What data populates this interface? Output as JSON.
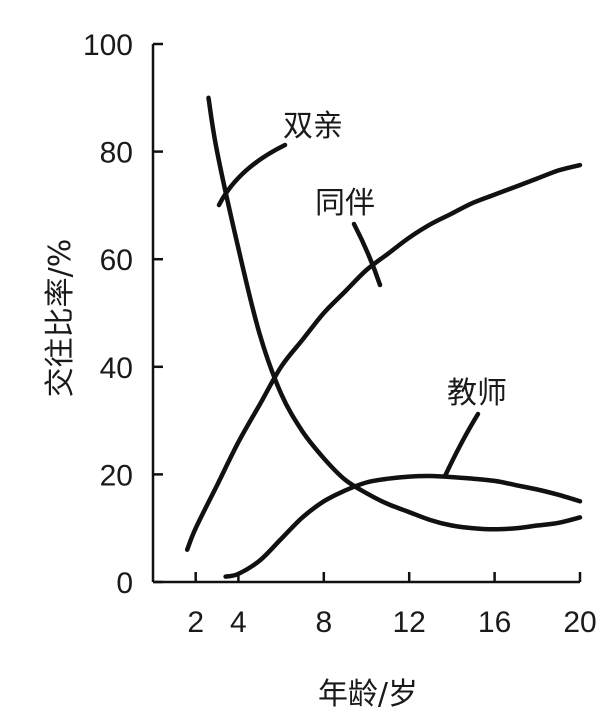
{
  "chart_data": {
    "type": "line",
    "title": "",
    "xlabel": "年龄/岁",
    "ylabel": "交往比率/%",
    "xlim": [
      0,
      20
    ],
    "ylim": [
      0,
      100
    ],
    "xticks": [
      2,
      4,
      8,
      12,
      16,
      20
    ],
    "yticks": [
      0,
      20,
      40,
      60,
      80,
      100
    ],
    "grid": false,
    "series": [
      {
        "name": "双亲",
        "x": [
          2.6,
          3,
          4,
          5,
          6,
          7,
          8,
          9,
          10,
          11,
          12,
          13,
          14,
          15,
          16,
          17,
          18,
          19,
          20
        ],
        "y": [
          90,
          80,
          62,
          46,
          35,
          28,
          23,
          19,
          16.5,
          14.5,
          13,
          11.5,
          10.5,
          10,
          9.8,
          10,
          10.5,
          11,
          12
        ]
      },
      {
        "name": "同伴",
        "x": [
          1.6,
          2,
          3,
          4,
          5,
          6,
          7,
          8,
          9,
          10,
          11,
          12,
          13,
          14,
          15,
          16,
          17,
          18,
          19,
          20
        ],
        "y": [
          6,
          10,
          18,
          26,
          33,
          40,
          45,
          50,
          54,
          58,
          61,
          64,
          66.5,
          68.5,
          70.5,
          72,
          73.5,
          75,
          76.5,
          77.5
        ]
      },
      {
        "name": "教师",
        "x": [
          3.4,
          4,
          5,
          6,
          7,
          8,
          9,
          10,
          11,
          12,
          13,
          14,
          15,
          16,
          17,
          18,
          19,
          20
        ],
        "y": [
          1,
          1.5,
          4,
          8,
          12,
          15,
          17,
          18.5,
          19.2,
          19.6,
          19.7,
          19.5,
          19.2,
          18.8,
          18,
          17.2,
          16.2,
          15
        ]
      }
    ],
    "labels": {
      "parents": "双亲",
      "peers": "同伴",
      "teachers": "教师"
    }
  }
}
